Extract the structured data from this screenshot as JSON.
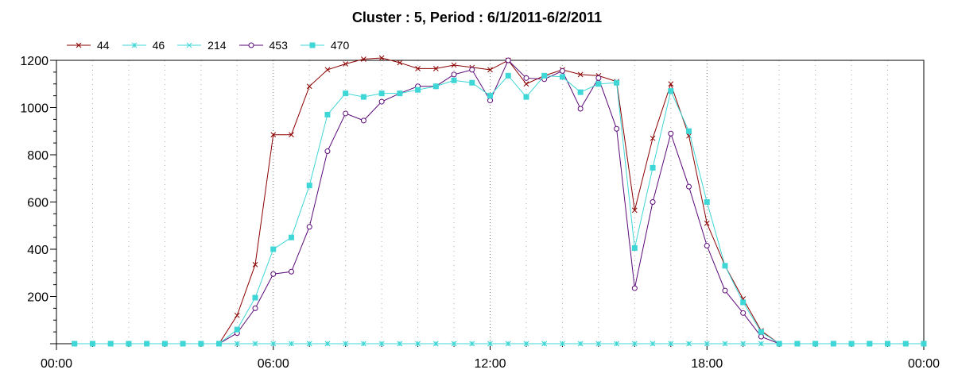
{
  "chart_data": {
    "type": "line",
    "title": "Cluster : 5, Period : 6/1/2011-6/2/2011",
    "xlabel": "",
    "ylabel": "",
    "x_ticks": [
      "00:00",
      "06:00",
      "12:00",
      "18:00",
      "00:00"
    ],
    "x_range_hours": [
      0,
      24
    ],
    "y_ticks": [
      200,
      400,
      600,
      800,
      1000,
      1200
    ],
    "ylim": [
      0,
      1200
    ],
    "grid": "vertical dotted",
    "legend_position": "top-left",
    "x": [
      0.5,
      1.0,
      1.5,
      2.0,
      2.5,
      3.0,
      3.5,
      4.0,
      4.5,
      5.0,
      5.5,
      6.0,
      6.5,
      7.0,
      7.5,
      8.0,
      8.5,
      9.0,
      9.5,
      10.0,
      10.5,
      11.0,
      11.5,
      12.0,
      12.5,
      13.0,
      13.5,
      14.0,
      14.5,
      15.0,
      15.5,
      16.0,
      16.5,
      17.0,
      17.5,
      18.0,
      18.5,
      19.0,
      19.5,
      20.0,
      20.5,
      21.0,
      21.5,
      22.0,
      22.5,
      23.0,
      23.5,
      24.0
    ],
    "series": [
      {
        "name": "44",
        "color": "#8b0000",
        "marker": "x",
        "values": [
          0,
          0,
          0,
          0,
          0,
          0,
          0,
          0,
          0,
          120,
          335,
          885,
          885,
          1090,
          1160,
          1185,
          1205,
          1210,
          1190,
          1165,
          1165,
          1180,
          1170,
          1160,
          1200,
          1100,
          1135,
          1160,
          1140,
          1135,
          1110,
          565,
          870,
          1100,
          880,
          510,
          330,
          190,
          55,
          0,
          0,
          0,
          0,
          0,
          0,
          0,
          0,
          0
        ]
      },
      {
        "name": "46",
        "color": "#3fd6d6",
        "marker": "*",
        "values": [
          0,
          0,
          0,
          0,
          0,
          0,
          0,
          0,
          0,
          0,
          0,
          0,
          0,
          0,
          0,
          0,
          0,
          0,
          0,
          0,
          0,
          0,
          0,
          0,
          0,
          0,
          0,
          0,
          0,
          0,
          0,
          0,
          0,
          0,
          0,
          0,
          0,
          0,
          0,
          0,
          0,
          0,
          0,
          0,
          0,
          0,
          0,
          0
        ]
      },
      {
        "name": "214",
        "color": "#3fd6d6",
        "marker": "x",
        "values": [
          0,
          0,
          0,
          0,
          0,
          0,
          0,
          0,
          0,
          0,
          0,
          0,
          0,
          0,
          0,
          0,
          0,
          0,
          0,
          0,
          0,
          0,
          0,
          0,
          0,
          0,
          0,
          0,
          0,
          0,
          0,
          0,
          0,
          0,
          0,
          0,
          0,
          0,
          0,
          0,
          0,
          0,
          0,
          0,
          0,
          0,
          0,
          0
        ]
      },
      {
        "name": "453",
        "color": "#5a0a78",
        "marker": "circle",
        "values": [
          0,
          0,
          0,
          0,
          0,
          0,
          0,
          0,
          0,
          45,
          150,
          295,
          305,
          495,
          815,
          975,
          945,
          1025,
          1060,
          1090,
          1090,
          1140,
          1160,
          1030,
          1200,
          1125,
          1120,
          1155,
          995,
          1125,
          910,
          235,
          600,
          890,
          665,
          415,
          225,
          130,
          30,
          0,
          0,
          0,
          0,
          0,
          0,
          0,
          0,
          0
        ]
      },
      {
        "name": "470",
        "color": "#3fd6d6",
        "marker": "square",
        "values": [
          0,
          0,
          0,
          0,
          0,
          0,
          0,
          0,
          0,
          60,
          195,
          400,
          450,
          670,
          970,
          1060,
          1045,
          1060,
          1060,
          1075,
          1090,
          1115,
          1105,
          1050,
          1135,
          1045,
          1135,
          1130,
          1065,
          1100,
          1105,
          405,
          745,
          1070,
          900,
          600,
          330,
          175,
          50,
          0,
          0,
          0,
          0,
          0,
          0,
          0,
          0,
          0
        ]
      }
    ]
  }
}
